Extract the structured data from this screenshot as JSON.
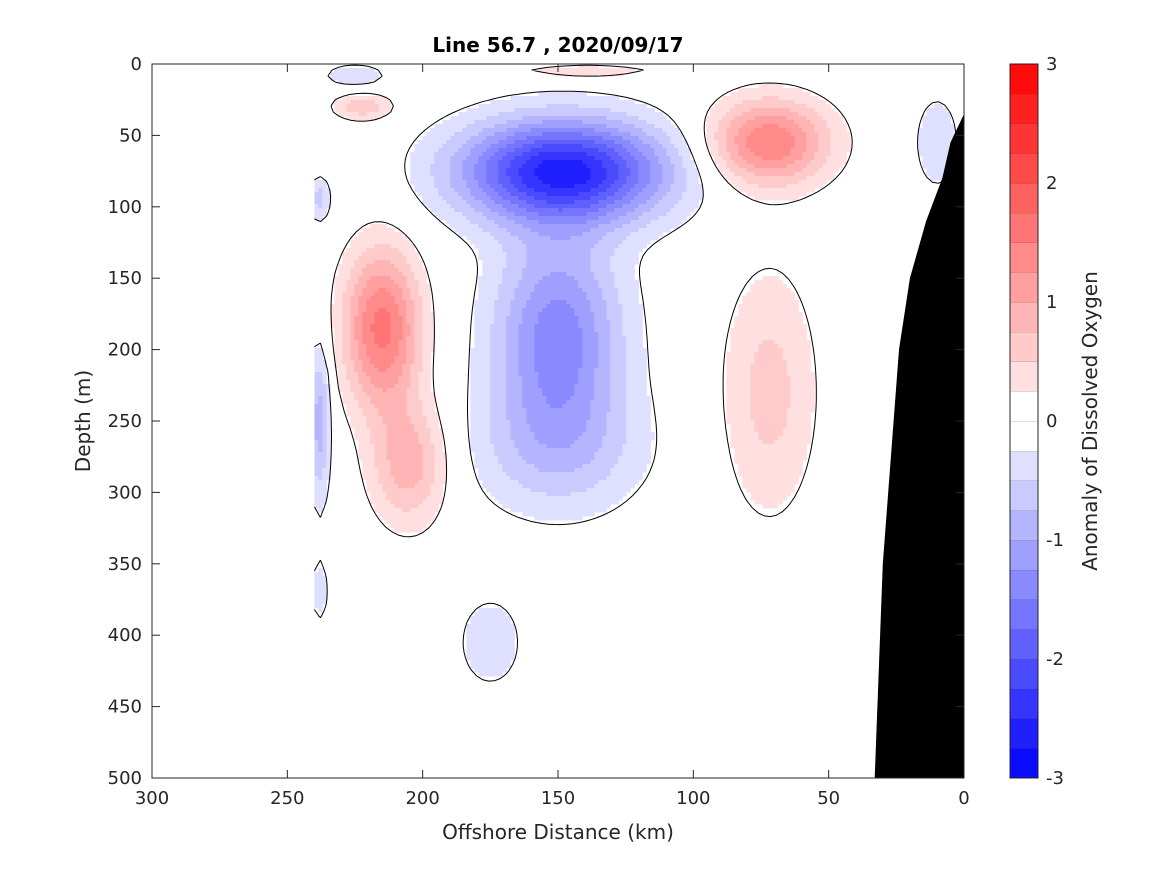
{
  "chart_data": {
    "type": "heatmap",
    "title": "Line 56.7 , 2020/09/17",
    "xlabel": "Offshore Distance (km)",
    "ylabel": "Depth (m)",
    "xlim": [
      300,
      0
    ],
    "ylim": [
      500,
      0
    ],
    "x_reversed": true,
    "y_reversed": true,
    "x_ticks": [
      300,
      250,
      200,
      150,
      100,
      50,
      0
    ],
    "y_ticks": [
      0,
      50,
      100,
      150,
      200,
      250,
      300,
      350,
      400,
      450,
      500
    ],
    "colorbar": {
      "label": "Anomaly of Dissolved Oxygen",
      "range": [
        -3,
        3
      ],
      "ticks": [
        -3,
        -2,
        -1,
        0,
        1,
        2,
        3
      ],
      "levels": 24,
      "low_color": "#0000ff",
      "mid_color": "#ffffff",
      "high_color": "#ff0000"
    },
    "data_extent_x": [
      240,
      0
    ],
    "features": [
      {
        "kind": "negative",
        "peak": -2.6,
        "x": 148,
        "y": 75,
        "rx": 48,
        "ry": 45
      },
      {
        "kind": "negative",
        "peak": -1.4,
        "x": 150,
        "y": 190,
        "rx": 30,
        "ry": 90
      },
      {
        "kind": "negative",
        "peak": -0.6,
        "x": 150,
        "y": 270,
        "rx": 42,
        "ry": 60
      },
      {
        "kind": "positive",
        "peak": 1.6,
        "x": 215,
        "y": 185,
        "rx": 18,
        "ry": 70
      },
      {
        "kind": "positive",
        "peak": 0.9,
        "x": 205,
        "y": 280,
        "rx": 18,
        "ry": 55
      },
      {
        "kind": "positive",
        "peak": 1.5,
        "x": 72,
        "y": 55,
        "rx": 28,
        "ry": 38
      },
      {
        "kind": "positive",
        "peak": 0.6,
        "x": 72,
        "y": 230,
        "rx": 22,
        "ry": 110
      },
      {
        "kind": "positive",
        "peak": 0.7,
        "x": 222,
        "y": 30,
        "rx": 14,
        "ry": 12
      },
      {
        "kind": "positive",
        "peak": 0.4,
        "x": 140,
        "y": 5,
        "rx": 40,
        "ry": 8
      },
      {
        "kind": "negative",
        "peak": -0.5,
        "x": 175,
        "y": 405,
        "rx": 14,
        "ry": 38
      },
      {
        "kind": "negative",
        "peak": -0.5,
        "x": 225,
        "y": 8,
        "rx": 14,
        "ry": 10
      },
      {
        "kind": "negative",
        "peak": -0.5,
        "x": 10,
        "y": 55,
        "rx": 10,
        "ry": 40
      },
      {
        "kind": "negative",
        "peak": -0.9,
        "x": 238,
        "y": 250,
        "rx": 5,
        "ry": 70
      },
      {
        "kind": "negative",
        "peak": -0.6,
        "x": 238,
        "y": 95,
        "rx": 5,
        "ry": 20
      },
      {
        "kind": "negative",
        "peak": -0.3,
        "x": 238,
        "y": 370,
        "rx": 6,
        "ry": 40
      }
    ],
    "bathymetry_mask": [
      [
        0,
        35
      ],
      [
        5,
        55
      ],
      [
        8,
        80
      ],
      [
        14,
        110
      ],
      [
        20,
        150
      ],
      [
        24,
        200
      ],
      [
        28,
        300
      ],
      [
        30,
        350
      ],
      [
        33,
        500
      ],
      [
        0,
        500
      ]
    ]
  }
}
